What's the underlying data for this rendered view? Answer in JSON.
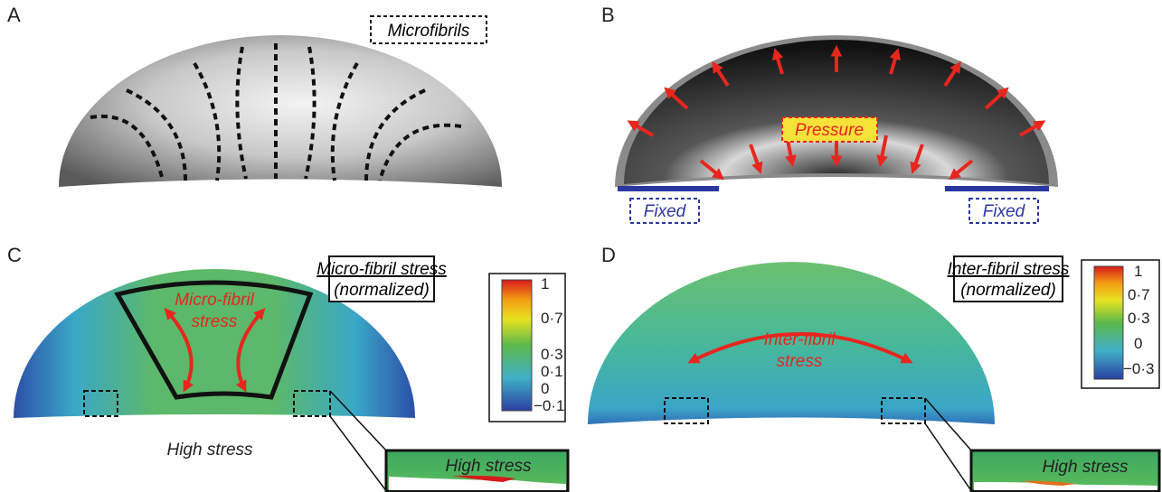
{
  "panel_a": {
    "label": "A",
    "tag": "Microfibrils"
  },
  "panel_b": {
    "label": "B",
    "load": "Pressure",
    "supports": [
      "Fixed",
      "Fixed"
    ]
  },
  "panel_c": {
    "label": "C",
    "legend_title": "Micro-fibril stress",
    "legend_subtitle": "(normalized)",
    "colorbar_ticks": [
      "1",
      "0·7",
      "0·3",
      "0·1",
      "0",
      "−0·1"
    ],
    "region_label": [
      "Micro-fibril",
      "stress"
    ],
    "bottom_label": "High stress",
    "inset_label": "High stress"
  },
  "panel_d": {
    "label": "D",
    "legend_title": "Inter-fibril stress",
    "legend_subtitle": "(normalized)",
    "colorbar_ticks": [
      "1",
      "0·7",
      "0·3",
      "0",
      "−0·3"
    ],
    "region_label": [
      "Inter-fibril",
      "stress"
    ],
    "inset_label": "High stress"
  }
}
